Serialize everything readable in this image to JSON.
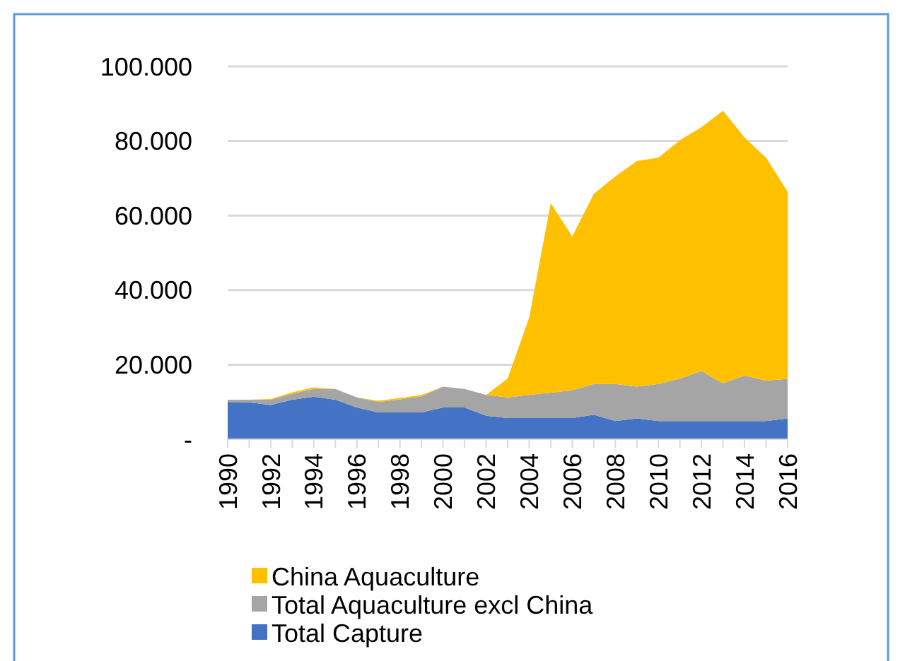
{
  "chart_data": {
    "type": "area",
    "stacked": true,
    "categories": [
      "1990",
      null,
      "1992",
      null,
      "1994",
      null,
      "1996",
      null,
      "1998",
      null,
      "2000",
      null,
      "2002",
      null,
      "2004",
      null,
      "2006",
      null,
      "2008",
      null,
      "2010",
      null,
      "2012",
      null,
      "2014",
      null,
      "2016"
    ],
    "series": [
      {
        "name": "Total Capture",
        "color": "#4472c4",
        "values": [
          10000,
          9900,
          9200,
          10600,
          11400,
          10600,
          8500,
          7200,
          7200,
          7200,
          8500,
          8500,
          6300,
          5700,
          5700,
          5700,
          5700,
          6600,
          4900,
          5600,
          4900,
          4900,
          4900,
          4900,
          4900,
          4900,
          5600
        ]
      },
      {
        "name": "Total Aquaculture excl China",
        "color": "#a5a5a5",
        "values": [
          600,
          700,
          1400,
          1600,
          2100,
          2900,
          2700,
          2800,
          3500,
          4300,
          5600,
          5000,
          5600,
          5500,
          6200,
          6800,
          7400,
          8200,
          9900,
          8500,
          9900,
          11400,
          13400,
          10100,
          12200,
          10800,
          10600
        ]
      },
      {
        "name": "China Aquaculture",
        "color": "#ffc000",
        "values": [
          0,
          0,
          200,
          400,
          400,
          0,
          0,
          300,
          400,
          400,
          0,
          0,
          0,
          5100,
          20700,
          50800,
          41300,
          51000,
          55700,
          60500,
          60700,
          63900,
          65400,
          73100,
          63800,
          59800,
          50200
        ]
      }
    ],
    "ylim": [
      0,
      100000
    ],
    "yticks": [
      {
        "value": 0,
        "label": "-"
      },
      {
        "value": 20000,
        "label": "20.000"
      },
      {
        "value": 40000,
        "label": "40.000"
      },
      {
        "value": 60000,
        "label": "60.000"
      },
      {
        "value": 80000,
        "label": "80.000"
      },
      {
        "value": 100000,
        "label": "100.000"
      }
    ],
    "grid": "y",
    "legend": "bottom"
  }
}
